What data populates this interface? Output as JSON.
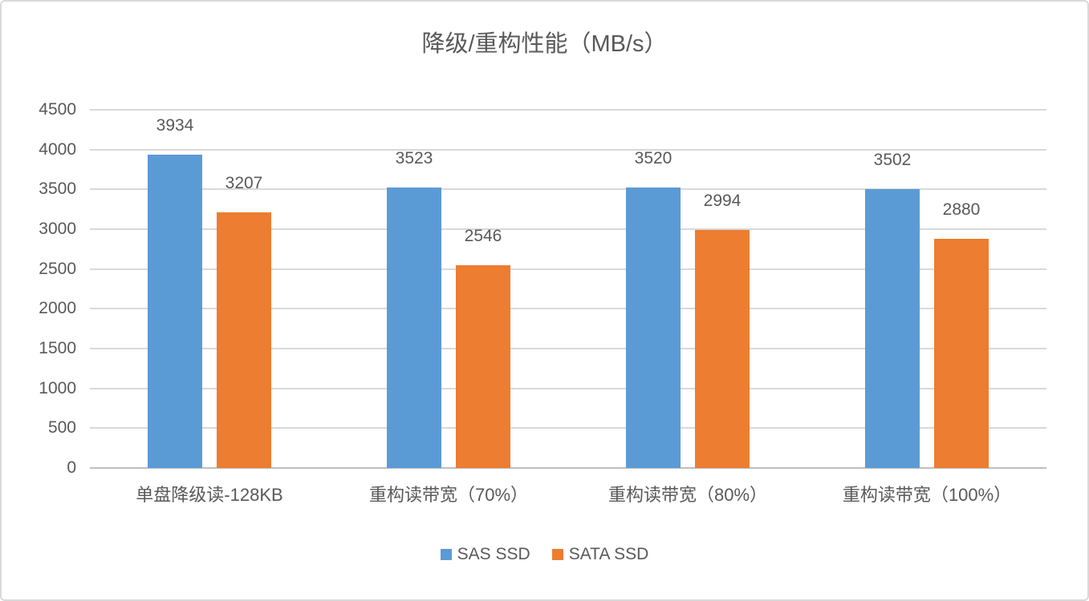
{
  "chart_data": {
    "type": "bar",
    "title": "降级/重构性能（MB/s）",
    "categories": [
      "单盘降级读-128KB",
      "重构读带宽（70%）",
      "重构读带宽（80%）",
      "重构读带宽（100%）"
    ],
    "series": [
      {
        "name": "SAS SSD",
        "color": "#5B9BD5",
        "values": [
          3934,
          3523,
          3520,
          3502
        ]
      },
      {
        "name": "SATA SSD",
        "color": "#ED7D31",
        "values": [
          3207,
          2546,
          2994,
          2880
        ]
      }
    ],
    "ylim": [
      0,
      4500
    ],
    "ytick_step": 500,
    "ytick_labels": [
      "0",
      "500",
      "1000",
      "1500",
      "2000",
      "2500",
      "3000",
      "3500",
      "4000",
      "4500"
    ],
    "grid": true,
    "data_labels": true,
    "legend_position": "bottom",
    "colors": {
      "grid": "#D9D9D9",
      "axis": "#BFBFBF",
      "text": "#595959",
      "frame_border": "#D9D9D9",
      "background": "#FFFFFF"
    }
  }
}
